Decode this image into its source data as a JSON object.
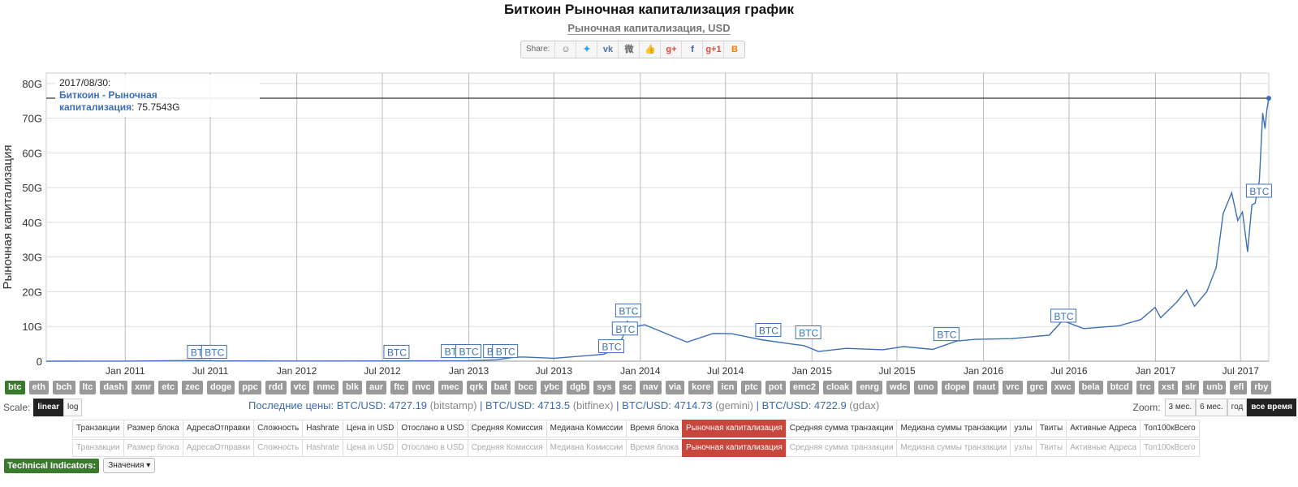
{
  "title": "Биткоин Рыночная капитализация график",
  "subtitle": "Рыночная капитализация, USD",
  "share": {
    "label": "Share:",
    "icons": [
      {
        "name": "reddit-icon",
        "glyph": "☺",
        "color": "#666"
      },
      {
        "name": "twitter-icon",
        "glyph": "✦",
        "color": "#1da1f2"
      },
      {
        "name": "vk-icon",
        "glyph": "vk",
        "color": "#4a76a8"
      },
      {
        "name": "weibo-icon",
        "glyph": "微",
        "color": "#666"
      },
      {
        "name": "like-icon",
        "glyph": "👍",
        "color": "#3b5998"
      },
      {
        "name": "google-plus-icon",
        "glyph": "g+",
        "color": "#dd4b39"
      },
      {
        "name": "facebook-icon",
        "glyph": "f",
        "color": "#3b5998"
      },
      {
        "name": "google-plus-one-icon",
        "glyph": "g+1",
        "color": "#dd4b39"
      },
      {
        "name": "blogger-icon",
        "glyph": "B",
        "color": "#f57d00"
      }
    ]
  },
  "tooltip": {
    "date": "2017/08/30:",
    "series": "Биткоин - Рыночная капитализация",
    "value": ": 75.7543G"
  },
  "chart_data": {
    "type": "line",
    "ylabel": "Рыночная капитализация",
    "ylim": [
      0,
      83
    ],
    "xlim": [
      "2010-07-17",
      "2017-08-30"
    ],
    "yticks": [
      {
        "label": "0",
        "v": 0
      },
      {
        "label": "10G",
        "v": 10
      },
      {
        "label": "20G",
        "v": 20
      },
      {
        "label": "30G",
        "v": 30
      },
      {
        "label": "40G",
        "v": 40
      },
      {
        "label": "50G",
        "v": 50
      },
      {
        "label": "60G",
        "v": 60
      },
      {
        "label": "70G",
        "v": 70
      },
      {
        "label": "80G",
        "v": 80
      }
    ],
    "xticks": [
      {
        "label": "Jan 2011",
        "d": "2011-01-01"
      },
      {
        "label": "Jul 2011",
        "d": "2011-07-01"
      },
      {
        "label": "Jan 2012",
        "d": "2012-01-01"
      },
      {
        "label": "Jul 2012",
        "d": "2012-07-01"
      },
      {
        "label": "Jan 2013",
        "d": "2013-01-01"
      },
      {
        "label": "Jul 2013",
        "d": "2013-07-01"
      },
      {
        "label": "Jan 2014",
        "d": "2014-01-01"
      },
      {
        "label": "Jul 2014",
        "d": "2014-07-01"
      },
      {
        "label": "Jan 2015",
        "d": "2015-01-01"
      },
      {
        "label": "Jul 2015",
        "d": "2015-07-01"
      },
      {
        "label": "Jan 2016",
        "d": "2016-01-01"
      },
      {
        "label": "Jul 2016",
        "d": "2016-07-01"
      },
      {
        "label": "Jan 2017",
        "d": "2017-01-01"
      },
      {
        "label": "Jul 2017",
        "d": "2017-07-01"
      }
    ],
    "series": [
      {
        "color": "#3d6fb6",
        "points": [
          [
            "2010-07-17",
            0
          ],
          [
            "2011-01-01",
            0.02
          ],
          [
            "2011-06-08",
            0.2
          ],
          [
            "2011-07-15",
            0.1
          ],
          [
            "2012-01-01",
            0.04
          ],
          [
            "2012-07-01",
            0.07
          ],
          [
            "2013-01-01",
            0.14
          ],
          [
            "2013-03-01",
            0.4
          ],
          [
            "2013-04-10",
            1.2
          ],
          [
            "2013-05-01",
            1.2
          ],
          [
            "2013-07-01",
            0.85
          ],
          [
            "2013-09-01",
            1.5
          ],
          [
            "2013-10-15",
            2.0
          ],
          [
            "2013-11-10",
            3.5
          ],
          [
            "2013-11-25",
            7.0
          ],
          [
            "2013-12-04",
            11.5
          ],
          [
            "2013-12-15",
            9.8
          ],
          [
            "2014-01-10",
            10.5
          ],
          [
            "2014-02-15",
            8.5
          ],
          [
            "2014-04-10",
            5.5
          ],
          [
            "2014-06-05",
            8.0
          ],
          [
            "2014-07-15",
            7.9
          ],
          [
            "2014-09-15",
            6.2
          ],
          [
            "2014-11-15",
            5.0
          ],
          [
            "2014-12-15",
            4.5
          ],
          [
            "2015-01-15",
            2.8
          ],
          [
            "2015-03-15",
            3.7
          ],
          [
            "2015-06-01",
            3.3
          ],
          [
            "2015-07-15",
            4.2
          ],
          [
            "2015-09-15",
            3.4
          ],
          [
            "2015-11-05",
            5.8
          ],
          [
            "2015-12-15",
            6.3
          ],
          [
            "2016-03-01",
            6.5
          ],
          [
            "2016-05-20",
            7.5
          ],
          [
            "2016-06-17",
            11.7
          ],
          [
            "2016-08-01",
            9.4
          ],
          [
            "2016-10-15",
            10.2
          ],
          [
            "2016-12-01",
            12.0
          ],
          [
            "2016-12-31",
            15.5
          ],
          [
            "2017-01-12",
            12.5
          ],
          [
            "2017-02-15",
            17.0
          ],
          [
            "2017-03-08",
            20.5
          ],
          [
            "2017-03-25",
            15.8
          ],
          [
            "2017-04-20",
            20.0
          ],
          [
            "2017-05-10",
            27.0
          ],
          [
            "2017-05-25",
            42.5
          ],
          [
            "2017-06-12",
            48.5
          ],
          [
            "2017-06-25",
            40.5
          ],
          [
            "2017-07-05",
            43.0
          ],
          [
            "2017-07-16",
            31.5
          ],
          [
            "2017-07-25",
            45.0
          ],
          [
            "2017-08-01",
            45.5
          ],
          [
            "2017-08-10",
            52.0
          ],
          [
            "2017-08-17",
            71.5
          ],
          [
            "2017-08-22",
            67.0
          ],
          [
            "2017-08-26",
            72.5
          ],
          [
            "2017-08-30",
            75.75
          ]
        ]
      }
    ],
    "annotations": [
      {
        "text": "BTC",
        "d": "2011-06-10",
        "v": 0.6
      },
      {
        "text": "BTC",
        "d": "2011-07-10",
        "v": 0.6
      },
      {
        "text": "BTC",
        "d": "2012-08-01",
        "v": 0.6
      },
      {
        "text": "BTC",
        "d": "2012-12-01",
        "v": 0.8
      },
      {
        "text": "BTC",
        "d": "2013-01-01",
        "v": 0.8
      },
      {
        "text": "BTC",
        "d": "2013-03-01",
        "v": 0.8
      },
      {
        "text": "BTC",
        "d": "2013-03-20",
        "v": 0.8
      },
      {
        "text": "BTC",
        "d": "2013-11-01",
        "v": 2.2
      },
      {
        "text": "BTC",
        "d": "2013-11-30",
        "v": 7.3
      },
      {
        "text": "BTC",
        "d": "2013-12-07",
        "v": 12.5
      },
      {
        "text": "BTC",
        "d": "2014-10-01",
        "v": 6.9
      },
      {
        "text": "BTC",
        "d": "2014-12-25",
        "v": 6.2
      },
      {
        "text": "BTC",
        "d": "2015-10-15",
        "v": 5.7
      },
      {
        "text": "BTC",
        "d": "2016-06-20",
        "v": 11.0
      },
      {
        "text": "BTC",
        "d": "2017-08-10",
        "v": 47.0
      }
    ]
  },
  "coins": [
    "btc",
    "eth",
    "bch",
    "ltc",
    "dash",
    "xmr",
    "etc",
    "zec",
    "doge",
    "ppc",
    "rdd",
    "vtc",
    "nmc",
    "blk",
    "aur",
    "ftc",
    "nvc",
    "mec",
    "qrk",
    "bat",
    "bcc",
    "ybc",
    "dgb",
    "sys",
    "sc",
    "nav",
    "via",
    "kore",
    "icn",
    "ptc",
    "pot",
    "emc2",
    "cloak",
    "enrg",
    "wdc",
    "uno",
    "dope",
    "naut",
    "vrc",
    "grc",
    "xwc",
    "bela",
    "btcd",
    "trc",
    "xst",
    "slr",
    "unb",
    "efl",
    "rby"
  ],
  "active_coin": "btc",
  "scale": {
    "label": "Scale:",
    "linear": "linear",
    "log": "log"
  },
  "prices": {
    "prefix": "Последние цены:",
    "items": [
      {
        "pair": "BTC/USD: 4727.19",
        "src": "(bitstamp)"
      },
      {
        "pair": "BTC/USD: 4713.5",
        "src": "(bitfinex)"
      },
      {
        "pair": "BTC/USD: 4714.73",
        "src": "(gemini)"
      },
      {
        "pair": "BTC/USD: 4722.9",
        "src": "(gdax)"
      }
    ]
  },
  "zoom": {
    "label": "Zoom:",
    "options": [
      "3 мес.",
      "6 мес.",
      "год",
      "все время"
    ],
    "active": "все время"
  },
  "metrics": [
    "Транзакции",
    "Размер блока",
    "АдресаОтправки",
    "Сложность",
    "Hashrate",
    "Цена in USD",
    "Отослано в USD",
    "Средняя Комиссия",
    "Медиана Комиссии",
    "Время блока",
    "Рыночная капитализация",
    "Средняя сумма транзакции",
    "Медиана суммы транзакции",
    "узлы",
    "Твиты",
    "Активные Адреса",
    "Топ100кВсего"
  ],
  "active_metric": "Рыночная капитализация",
  "tech": {
    "label": "Technical Indicators:",
    "dropdown": "Значения ▾"
  }
}
